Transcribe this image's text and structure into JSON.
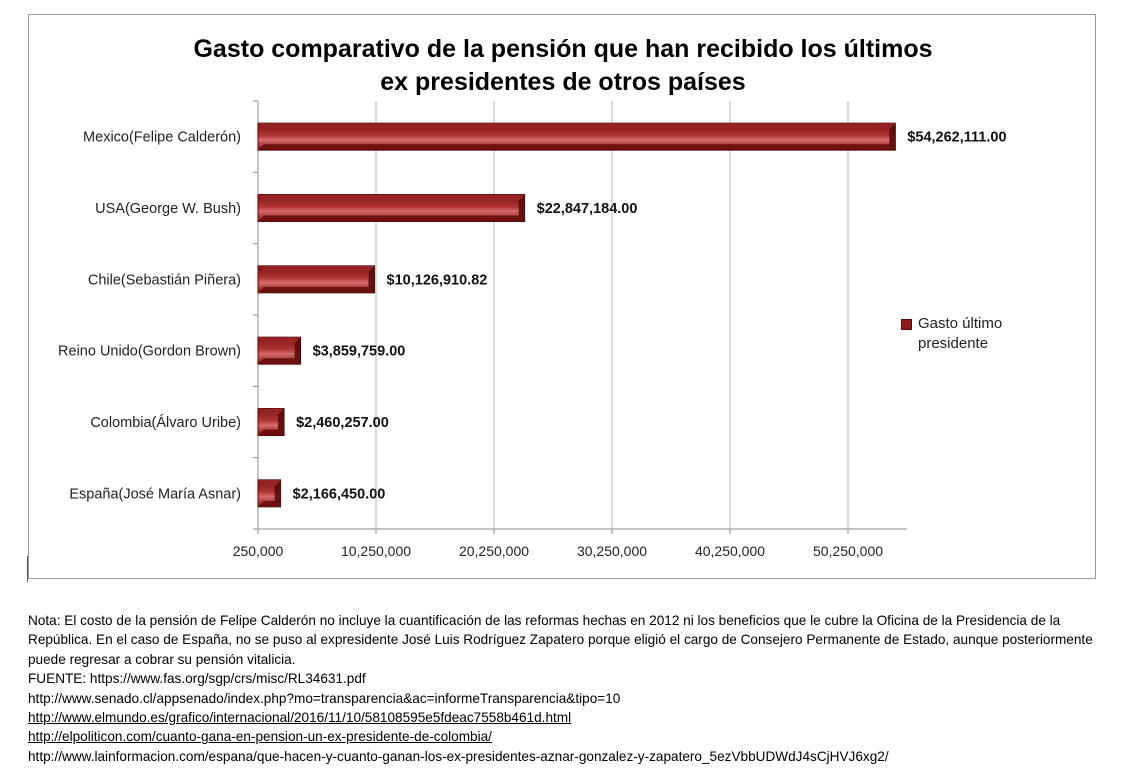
{
  "chart_data": {
    "type": "bar",
    "orientation": "horizontal",
    "title_lines": [
      "Gasto comparativo de la pensión que han recibido los últimos",
      "ex presidentes de otros países"
    ],
    "categories": [
      "Mexico(Felipe Calderón)",
      "USA(George W. Bush)",
      "Chile(Sebastián Piñera)",
      "Reino Unido(Gordon Brown)",
      "Colombia(Álvaro Uribe)",
      "España(José María Asnar)"
    ],
    "series": [
      {
        "name": "Gasto último presidente",
        "values": [
          54262111.0,
          22847184.0,
          10126910.82,
          3859759.0,
          2460257.0,
          2166450.0
        ],
        "value_labels": [
          "$54,262,111.00",
          "$22,847,184.00",
          "$10,126,910.82",
          "$3,859,759.00",
          "$2,460,257.00",
          "$2,166,450.00"
        ]
      }
    ],
    "x_ticks": [
      250000,
      10250000,
      20250000,
      30250000,
      40250000,
      50250000
    ],
    "x_tick_labels": [
      "250,000",
      "10,250,000",
      "20,250,000",
      "30,250,000",
      "40,250,000",
      "50,250,000"
    ],
    "xlim": [
      250000,
      55250000
    ],
    "grid": true,
    "legend_position": "right",
    "xlabel": "",
    "ylabel": ""
  },
  "colors": {
    "bar_dark": "#7a1414",
    "bar_mid": "#b03434",
    "bar_light": "#d86a6a",
    "grid": "#b4b4b4",
    "axis": "#8c8c8c"
  },
  "legend": {
    "label_line1": "Gasto último",
    "label_line2": "presidente"
  },
  "notes": {
    "paragraph": "Nota: El costo de la pensión de Felipe Calderón no incluye la cuantificación de las reformas hechas en 2012 ni los beneficios que le cubre la Oficina de la Presidencia de la República. En el caso de España, no se puso al expresidente José Luis Rodríguez Zapatero porque eligió el cargo de Consejero Permanente de Estado, aunque posteriormente puede regresar a cobrar su pensión vitalicia.",
    "sources": [
      "FUENTE: https://www.fas.org/sgp/crs/misc/RL34631.pdf",
      "http://www.senado.cl/appsenado/index.php?mo=transparencia&ac=informeTransparencia&tipo=10",
      "http://www.elmundo.es/grafico/internacional/2016/11/10/58108595e5fdeac7558b461d.html",
      "http://elpoliticon.com/cuanto-gana-en-pension-un-ex-presidente-de-colombia/",
      "http://www.lainformacion.com/espana/que-hacen-y-cuanto-ganan-los-ex-presidentes-aznar-gonzalez-y-zapatero_5ezVbbUDWdJ4sCjHVJ6xg2/"
    ]
  }
}
